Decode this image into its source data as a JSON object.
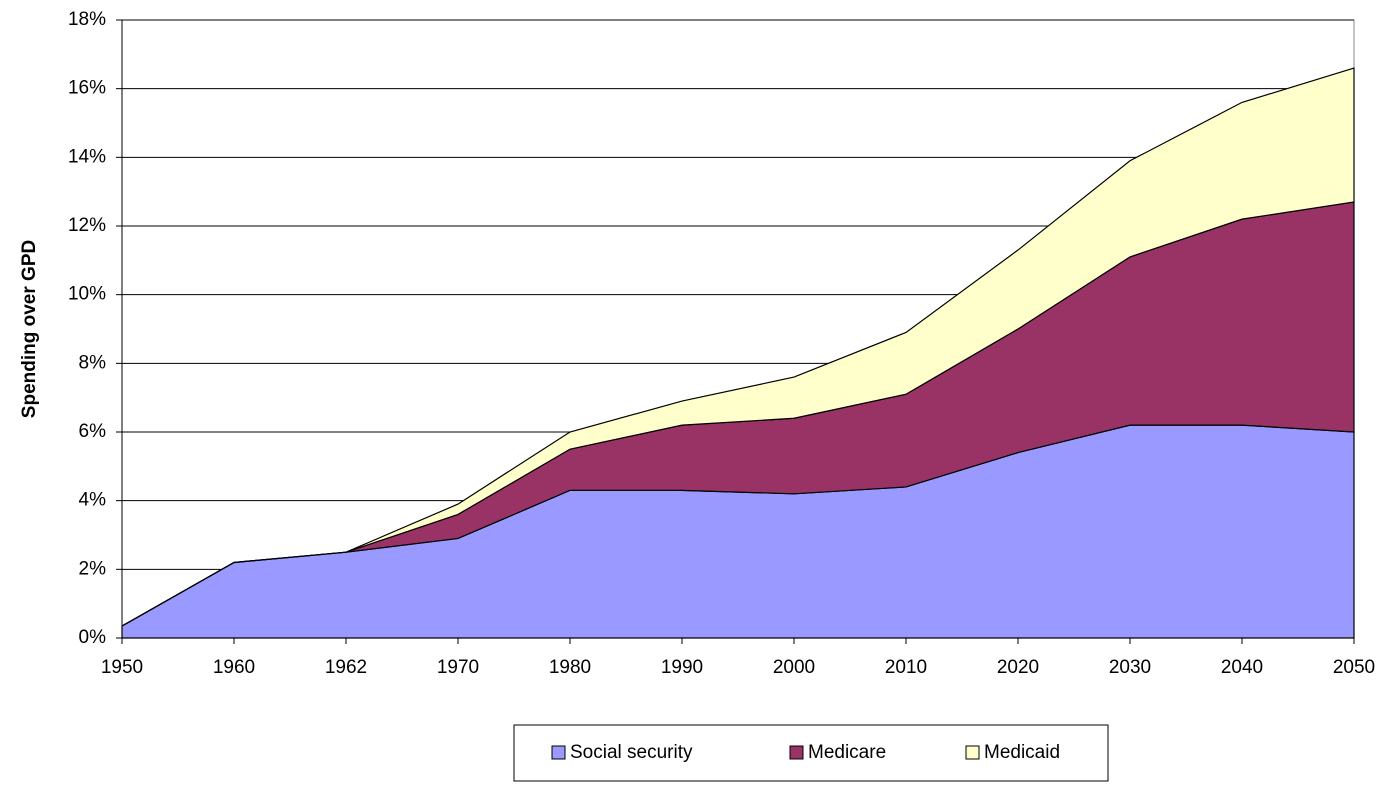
{
  "chart_data": {
    "type": "stacked-area",
    "y_label": "Spending over GPD",
    "categories": [
      "1950",
      "1960",
      "1962",
      "1970",
      "1980",
      "1990",
      "2000",
      "2010",
      "2020",
      "2030",
      "2040",
      "2050"
    ],
    "series": [
      {
        "name": "Social security",
        "color": "#9999ff",
        "values": [
          0.35,
          2.2,
          2.5,
          2.9,
          4.3,
          4.3,
          4.2,
          4.4,
          5.4,
          6.2,
          6.2,
          6.0
        ]
      },
      {
        "name": "Medicare",
        "color": "#993366",
        "values": [
          0,
          0,
          0,
          0.7,
          1.2,
          1.9,
          2.2,
          2.7,
          3.6,
          4.9,
          6.0,
          6.7
        ]
      },
      {
        "name": "Medicaid",
        "color": "#ffffcc",
        "values": [
          0,
          0,
          0,
          0.3,
          0.5,
          0.7,
          1.2,
          1.8,
          2.3,
          2.8,
          3.4,
          3.9
        ]
      }
    ],
    "ylim": [
      0,
      18
    ],
    "yticks": [
      {
        "value": 0,
        "label": "0%"
      },
      {
        "value": 2,
        "label": "2%"
      },
      {
        "value": 4,
        "label": "4%"
      },
      {
        "value": 6,
        "label": "6%"
      },
      {
        "value": 8,
        "label": "8%"
      },
      {
        "value": 10,
        "label": "10%"
      },
      {
        "value": 12,
        "label": "12%"
      },
      {
        "value": 14,
        "label": "14%"
      },
      {
        "value": 16,
        "label": "16%"
      },
      {
        "value": 18,
        "label": "18%"
      }
    ],
    "grid": true,
    "legend": "bottom"
  }
}
